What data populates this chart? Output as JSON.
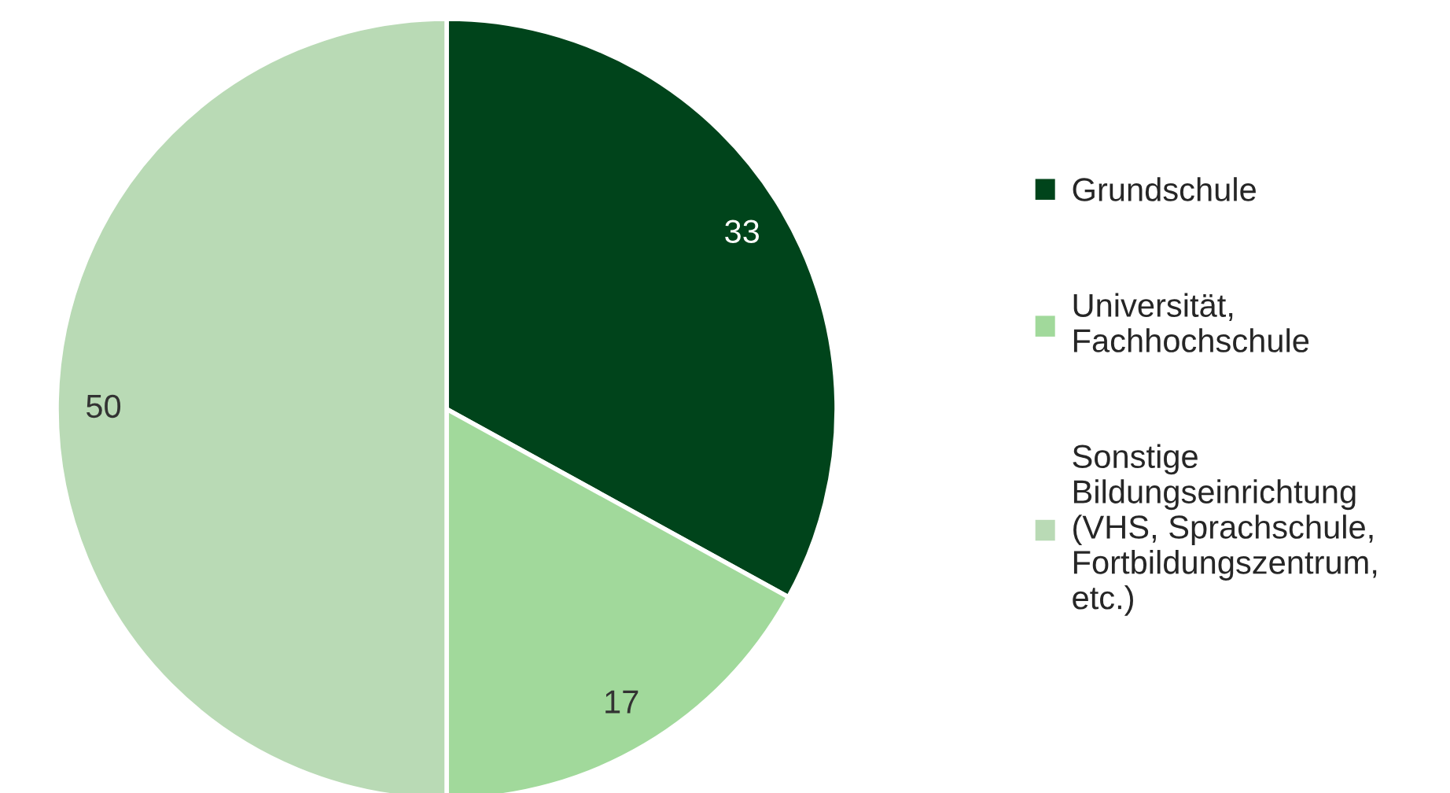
{
  "chart_data": {
    "type": "pie",
    "categories": [
      "Grundschule",
      "Universität,\nFachhochschule",
      "Sonstige\nBildungseinrichtung\n(VHS, Sprachschule,\nFortbildungszentrum,\netc.)"
    ],
    "values": [
      33,
      17,
      50
    ],
    "colors": [
      "#00441b",
      "#a1d99b",
      "#b9dab5"
    ],
    "data_labels": true,
    "legend": "right"
  }
}
